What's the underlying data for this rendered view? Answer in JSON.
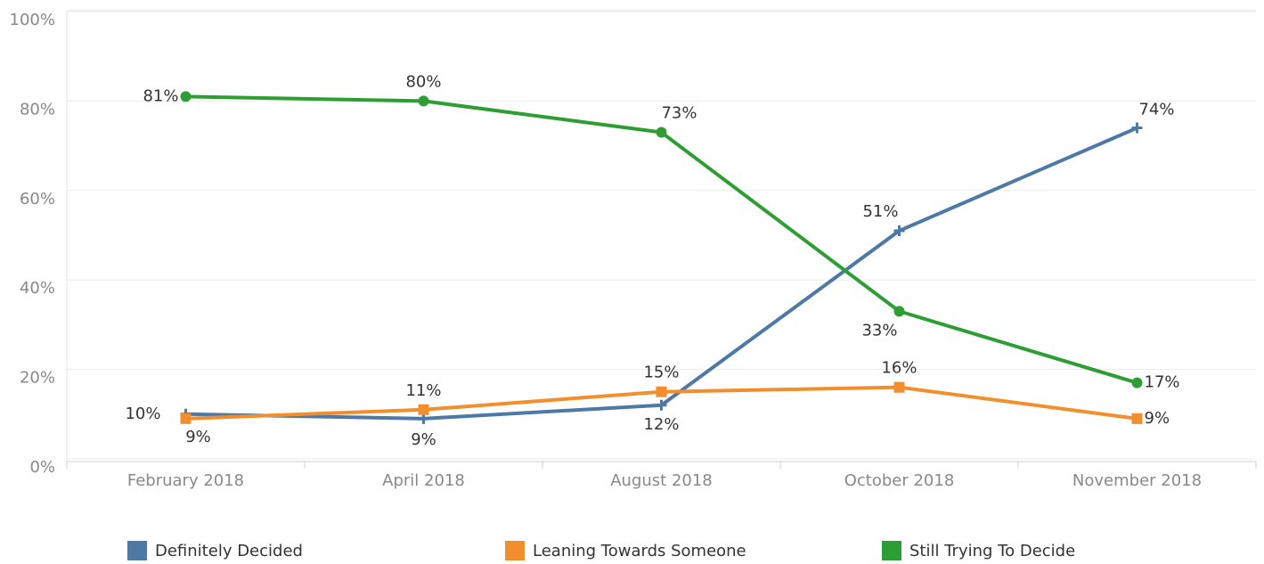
{
  "chart_data": {
    "type": "line",
    "categories": [
      "February 2018",
      "April 2018",
      "August 2018",
      "October 2018",
      "November 2018"
    ],
    "series": [
      {
        "name": "Definitely Decided",
        "color": "#4e79a7",
        "marker": "cross",
        "values": [
          10,
          9,
          12,
          51,
          74
        ],
        "value_labels": [
          "10%",
          "9%",
          "12%",
          "51%",
          "74%"
        ]
      },
      {
        "name": "Leaning Towards Someone",
        "color": "#f28e2b",
        "marker": "square",
        "values": [
          9,
          11,
          15,
          16,
          9
        ],
        "value_labels": [
          "9%",
          "11%",
          "15%",
          "16%",
          "9%"
        ]
      },
      {
        "name": "Still Trying To Decide",
        "color": "#2e9d34",
        "marker": "circle",
        "values": [
          81,
          80,
          73,
          33,
          17
        ],
        "value_labels": [
          "81%",
          "80%",
          "73%",
          "33%",
          "17%"
        ]
      }
    ],
    "ylim": [
      0,
      100
    ],
    "yticks": [
      {
        "value": 0,
        "label": "0%"
      },
      {
        "value": 20,
        "label": "20%"
      },
      {
        "value": 40,
        "label": "40%"
      },
      {
        "value": 60,
        "label": "60%"
      },
      {
        "value": 80,
        "label": "80%"
      },
      {
        "value": 100,
        "label": "100%"
      }
    ],
    "grid": true,
    "legend": "bottom"
  }
}
